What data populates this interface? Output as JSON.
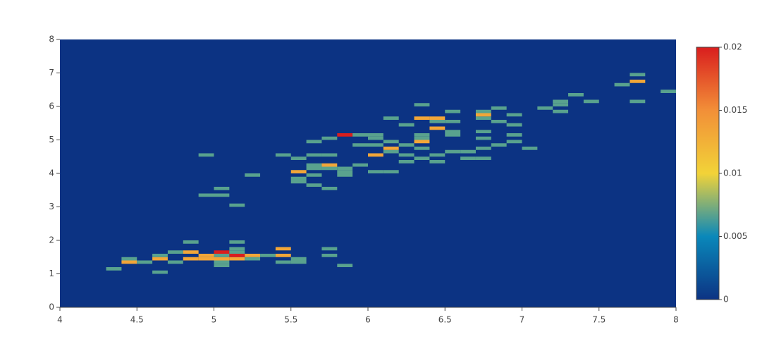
{
  "chart_data": {
    "type": "heatmap",
    "xlim": [
      4,
      8
    ],
    "xticks": [
      4,
      4.5,
      5,
      5.5,
      6,
      6.5,
      7,
      7.5,
      8
    ],
    "ylim": [
      0,
      8
    ],
    "yticks": [
      0,
      1,
      2,
      3,
      4,
      5,
      6,
      7,
      8
    ],
    "zlim": [
      0,
      0.02
    ],
    "colorbar_ticks": [
      0,
      0.005,
      0.01,
      0.015,
      0.02
    ],
    "colorscale": [
      [
        0,
        "#0c3383"
      ],
      [
        0.25,
        "#0a88ba"
      ],
      [
        0.5,
        "#f2d338"
      ],
      [
        0.75,
        "#f28f38"
      ],
      [
        1,
        "#d91e1e"
      ]
    ],
    "xbin_size": 0.1,
    "ybin_size": 0.1,
    "x": [
      4.3,
      4.4,
      4.4,
      4.5,
      4.6,
      4.6,
      4.6,
      4.7,
      4.7,
      4.8,
      4.8,
      4.8,
      4.9,
      4.9,
      5.0,
      5.0,
      5.0,
      5.0,
      5.0,
      5.1,
      5.1,
      5.1,
      5.1,
      5.1,
      5.2,
      5.2,
      5.3,
      5.4,
      5.4,
      5.4,
      5.5,
      5.5,
      5.7,
      5.7,
      5.8,
      4.9,
      4.9,
      5.0,
      5.0,
      5.1,
      5.2,
      5.4,
      5.5,
      5.5,
      5.5,
      5.5,
      5.6,
      5.6,
      5.6,
      5.6,
      5.6,
      5.6,
      5.7,
      5.7,
      5.7,
      5.7,
      5.7,
      5.8,
      5.8,
      5.8,
      5.8,
      5.9,
      5.9,
      5.9,
      6.0,
      6.0,
      6.0,
      6.0,
      6.0,
      6.1,
      6.1,
      6.1,
      6.1,
      6.1,
      6.2,
      6.2,
      6.2,
      6.2,
      6.3,
      6.3,
      6.3,
      6.3,
      6.3,
      6.3,
      6.3,
      6.4,
      6.4,
      6.4,
      6.4,
      6.4,
      6.5,
      6.5,
      6.5,
      6.5,
      6.5,
      6.6,
      6.6,
      6.7,
      6.7,
      6.7,
      6.7,
      6.7,
      6.7,
      6.7,
      6.8,
      6.8,
      6.8,
      6.9,
      6.9,
      6.9,
      6.9,
      7.0,
      7.1,
      7.2,
      7.2,
      7.2,
      7.3,
      7.4,
      7.6,
      7.7,
      7.7,
      7.7,
      7.9
    ],
    "y": [
      1.1,
      1.3,
      1.4,
      1.3,
      1.0,
      1.4,
      1.5,
      1.3,
      1.6,
      1.4,
      1.6,
      1.9,
      1.4,
      1.5,
      1.2,
      1.3,
      1.4,
      1.5,
      1.6,
      1.4,
      1.5,
      1.6,
      1.7,
      1.9,
      1.4,
      1.5,
      1.5,
      1.3,
      1.5,
      1.7,
      1.3,
      1.4,
      1.5,
      1.7,
      1.2,
      3.3,
      4.5,
      3.3,
      3.5,
      3.0,
      3.9,
      4.5,
      3.7,
      3.8,
      4.0,
      4.4,
      3.6,
      3.9,
      4.1,
      4.2,
      4.5,
      4.9,
      3.5,
      4.1,
      4.2,
      4.5,
      5.0,
      3.9,
      4.0,
      4.1,
      5.1,
      4.2,
      4.8,
      5.1,
      4.0,
      4.5,
      4.8,
      5.0,
      5.1,
      4.0,
      4.6,
      4.7,
      4.9,
      5.6,
      4.3,
      4.5,
      4.8,
      5.4,
      4.4,
      4.7,
      4.9,
      5.0,
      5.1,
      5.6,
      6.0,
      4.3,
      4.5,
      5.3,
      5.5,
      5.6,
      4.6,
      5.1,
      5.2,
      5.5,
      5.8,
      4.4,
      4.6,
      4.4,
      4.7,
      5.0,
      5.2,
      5.6,
      5.7,
      5.8,
      4.8,
      5.5,
      5.9,
      4.9,
      5.1,
      5.4,
      5.7,
      4.7,
      5.9,
      5.8,
      6.0,
      6.1,
      6.3,
      6.1,
      6.6,
      6.1,
      6.7,
      6.9,
      6.4
    ],
    "values": [
      0.0067,
      0.0133,
      0.0067,
      0.0067,
      0.0067,
      0.0133,
      0.0067,
      0.0067,
      0.0067,
      0.0133,
      0.0133,
      0.0067,
      0.0133,
      0.0133,
      0.0067,
      0.0067,
      0.0133,
      0.0067,
      0.02,
      0.0133,
      0.02,
      0.0067,
      0.0067,
      0.0067,
      0.0067,
      0.0133,
      0.0067,
      0.0067,
      0.0133,
      0.0133,
      0.0067,
      0.0067,
      0.0067,
      0.0067,
      0.0067,
      0.0067,
      0.0067,
      0.0067,
      0.0067,
      0.0067,
      0.0067,
      0.0067,
      0.0067,
      0.0067,
      0.0133,
      0.0067,
      0.0067,
      0.0067,
      0.0067,
      0.0067,
      0.0067,
      0.0067,
      0.0067,
      0.0067,
      0.0133,
      0.0067,
      0.0067,
      0.0067,
      0.0067,
      0.0067,
      0.02,
      0.0067,
      0.0067,
      0.0067,
      0.0067,
      0.0133,
      0.0067,
      0.0067,
      0.0067,
      0.0067,
      0.0067,
      0.0133,
      0.0067,
      0.0067,
      0.0067,
      0.0067,
      0.0067,
      0.0067,
      0.0067,
      0.0067,
      0.0133,
      0.0067,
      0.0067,
      0.0133,
      0.0067,
      0.0067,
      0.0067,
      0.0133,
      0.0067,
      0.0133,
      0.0067,
      0.0067,
      0.0067,
      0.0067,
      0.0067,
      0.0067,
      0.0067,
      0.0067,
      0.0067,
      0.0067,
      0.0067,
      0.0067,
      0.0133,
      0.0067,
      0.0067,
      0.0067,
      0.0067,
      0.0067,
      0.0067,
      0.0067,
      0.0067,
      0.0067,
      0.0067,
      0.0067,
      0.0067,
      0.0067,
      0.0067,
      0.0067,
      0.0067,
      0.0067,
      0.0133,
      0.0067,
      0.0067
    ]
  }
}
